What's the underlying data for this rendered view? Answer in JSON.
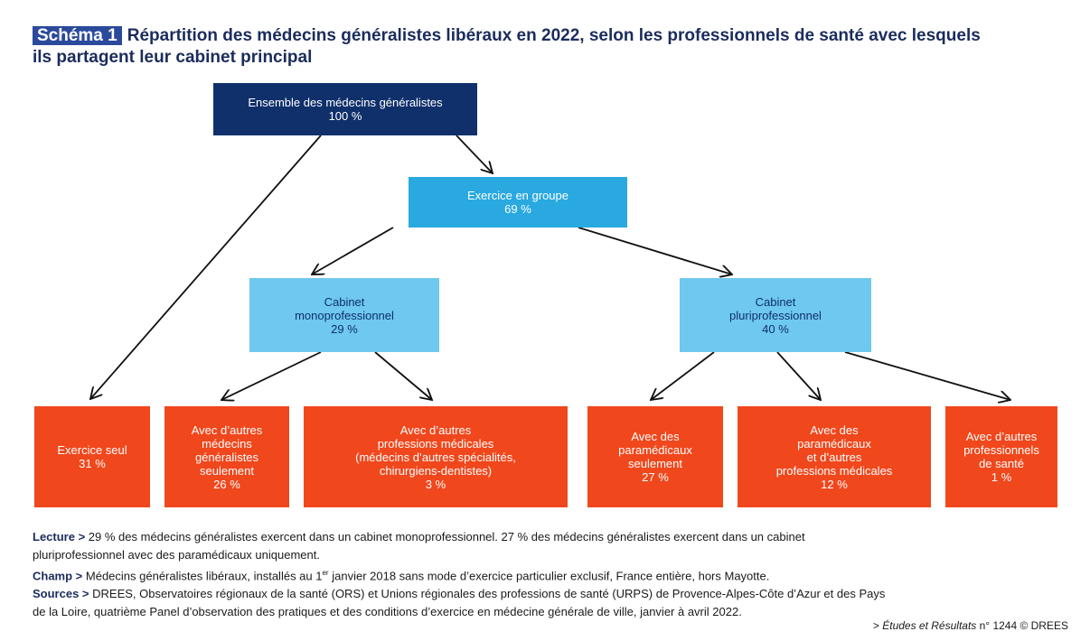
{
  "header": {
    "badge": "Schéma 1",
    "title_lines": [
      "Répartition des médecins généralistes libéraux en 2022, selon les professionnels de santé avec lesquels",
      "ils partagent leur cabinet principal"
    ]
  },
  "nodes": [
    {
      "lines": [
        "Ensemble des médecins généralistes"
      ],
      "share": "100 %"
    },
    {
      "lines": [
        "Exercice en groupe"
      ],
      "share": "69 %"
    },
    {
      "lines": [
        "Cabinet",
        "monoprofessionnel"
      ],
      "share": "29 %"
    },
    {
      "lines": [
        "Cabinet",
        "pluriprofessionnel"
      ],
      "share": "40 %"
    },
    {
      "lines": [
        "Exercice seul"
      ],
      "share": "31 %"
    },
    {
      "lines": [
        "Avec d’autres",
        "médecins",
        "généralistes",
        "seulement"
      ],
      "share": "26 %"
    },
    {
      "lines": [
        "Avec d’autres",
        "professions médicales",
        "(médecins d’autres spécialités,",
        "chirurgiens-dentistes)"
      ],
      "share": "3 %"
    },
    {
      "lines": [
        "Avec des",
        "paramédicaux",
        "seulement"
      ],
      "share": "27 %"
    },
    {
      "lines": [
        "Avec des",
        "paramédicaux",
        "et d’autres",
        "professions médicales"
      ],
      "share": "12 %"
    },
    {
      "lines": [
        "Avec d’autres",
        "professionnels",
        "de santé"
      ],
      "share": "1 %"
    }
  ],
  "notes": {
    "lecture": {
      "label": "Lecture >",
      "lines": [
        "29 % des médecins généralistes exercent dans un cabinet monoprofessionnel. 27 % des médecins généralistes exercent dans un cabinet",
        "pluriprofessionnel avec des paramédicaux uniquement."
      ]
    },
    "champ": {
      "label": "Champ >",
      "before": "Médecins généralistes libéraux, installés au 1",
      "sup": "er",
      "after": " janvier 2018 sans mode d’exercice particulier exclusif, France entière, hors Mayotte."
    },
    "sources": {
      "label": "Sources >",
      "lines": [
        "DREES, Observatoires régionaux de la santé (ORS) et Unions régionales des professions de santé (URPS) de Provence-Alpes-Côte d’Azur et des Pays",
        "de la Loire, quatrième Panel d’observation des pratiques et des conditions d’exercice en médecine générale de ville, janvier à avril 2022."
      ]
    },
    "credit": {
      "prefix": "> ",
      "publication": "Études et Résultats",
      "suffix": " n° 1244 © DREES"
    }
  }
}
